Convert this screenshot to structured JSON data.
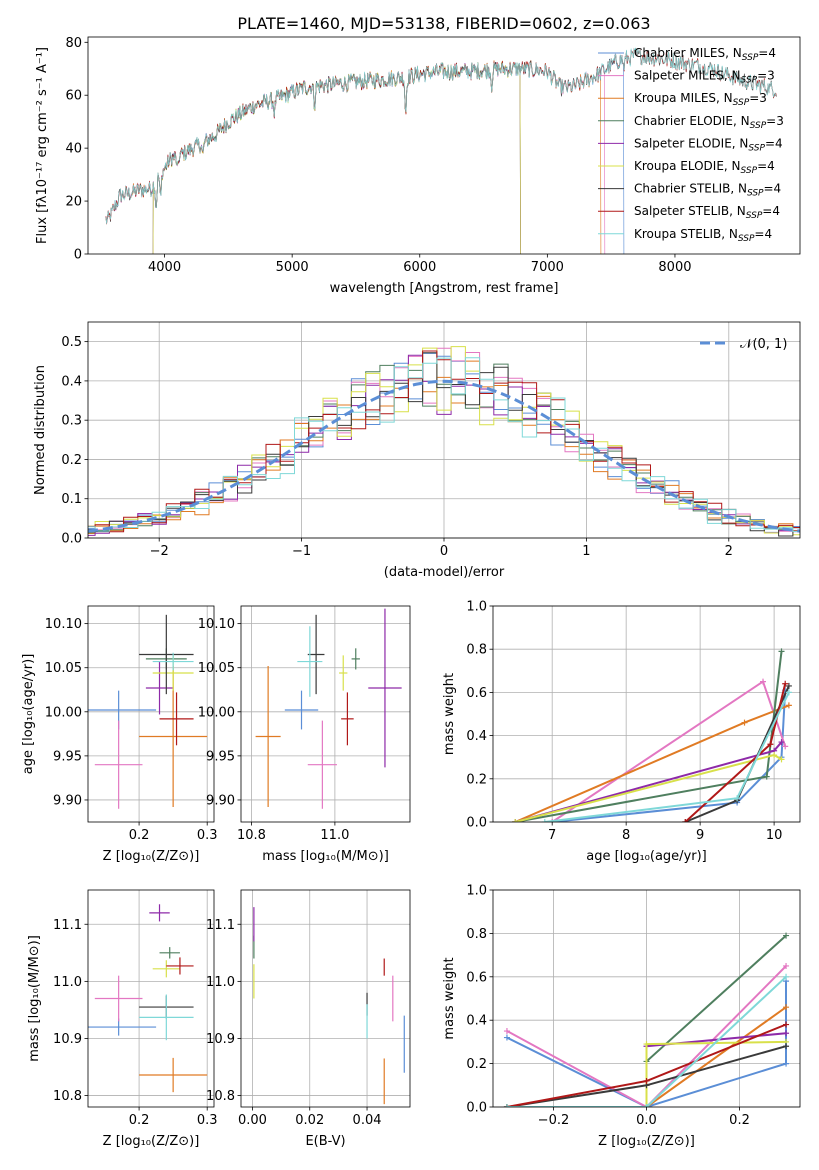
{
  "figure_title": "PLATE=1460, MJD=53138, FIBERID=0602, z=0.063",
  "colors": {
    "Chabrier MILES": "#5b8ed6",
    "Salpeter MILES": "#e377c2",
    "Kroupa MILES": "#e07b24",
    "Chabrier ELODIE": "#4f7f5f",
    "Salpeter ELODIE": "#8e2aa8",
    "Kroupa ELODIE": "#d8e04a",
    "Chabrier STELIB": "#3a3a3a",
    "Salpeter STELIB": "#b01818",
    "Kroupa STELIB": "#7fd8d8"
  },
  "chart_data": [
    {
      "id": "spectrum",
      "type": "line",
      "title": "PLATE=1460, MJD=53138, FIBERID=0602, z=0.063",
      "xlabel": "wavelength [Angstrom, rest frame]",
      "ylabel": "Flux [fλ10⁻¹⁷ erg cm⁻² s⁻¹ A⁻¹]",
      "xlim": [
        3400,
        8980
      ],
      "ylim": [
        0,
        82
      ],
      "xticks": [
        4000,
        5000,
        6000,
        7000,
        8000
      ],
      "yticks": [
        0,
        20,
        40,
        60,
        80
      ],
      "grid": false,
      "legend_placement": "top-right",
      "legend": [
        {
          "name": "Chabrier MILES",
          "label": "Chabrier MILES, N",
          "sub": "SSP",
          "n": "=4"
        },
        {
          "name": "Salpeter MILES",
          "label": "Salpeter MILES, N",
          "sub": "SSP",
          "n": "=3"
        },
        {
          "name": "Kroupa MILES",
          "label": "Kroupa MILES, N",
          "sub": "SSP",
          "n": "=3"
        },
        {
          "name": "Chabrier ELODIE",
          "label": "Chabrier ELODIE, N",
          "sub": "SSP",
          "n": "=3"
        },
        {
          "name": "Salpeter ELODIE",
          "label": "Salpeter ELODIE, N",
          "sub": "SSP",
          "n": "=4"
        },
        {
          "name": "Kroupa ELODIE",
          "label": "Kroupa ELODIE, N",
          "sub": "SSP",
          "n": "=4"
        },
        {
          "name": "Chabrier STELIB",
          "label": "Chabrier STELIB, N",
          "sub": "SSP",
          "n": "=4"
        },
        {
          "name": "Salpeter STELIB",
          "label": "Salpeter STELIB, N",
          "sub": "SSP",
          "n": "=4"
        },
        {
          "name": "Kroupa STELIB",
          "label": "Kroupa STELIB, N",
          "sub": "SSP",
          "n": "=4"
        }
      ],
      "continuum": {
        "x": [
          3560,
          3650,
          3800,
          3900,
          3950,
          4050,
          4150,
          4300,
          4400,
          4500,
          4700,
          4900,
          5100,
          5300,
          5500,
          5700,
          5900,
          6000,
          6200,
          6400,
          6600,
          6800,
          7000,
          7100,
          7200,
          7400,
          7550,
          7700,
          8000,
          8300,
          8500,
          8800
        ],
        "y": [
          13,
          22,
          24,
          25,
          29,
          36,
          38,
          42,
          45,
          50,
          56,
          59,
          63,
          64,
          65,
          66,
          67,
          68,
          69,
          69,
          70,
          70,
          69,
          63,
          63,
          68,
          73,
          75,
          73,
          70,
          66,
          62
        ]
      },
      "series_ranges": [
        {
          "name": "Chabrier MILES",
          "xmin": 3540,
          "xmax": 7600
        },
        {
          "name": "Salpeter MILES",
          "xmin": 3540,
          "xmax": 7450
        },
        {
          "name": "Kroupa MILES",
          "xmin": 3540,
          "xmax": 7420
        },
        {
          "name": "Chabrier ELODIE",
          "xmin": 3910,
          "xmax": 6790
        },
        {
          "name": "Salpeter ELODIE",
          "xmin": 3910,
          "xmax": 6790
        },
        {
          "name": "Kroupa ELODIE",
          "xmin": 3910,
          "xmax": 6790
        },
        {
          "name": "Chabrier STELIB",
          "xmin": 3540,
          "xmax": 8800
        },
        {
          "name": "Salpeter STELIB",
          "xmin": 3540,
          "xmax": 8800
        },
        {
          "name": "Kroupa STELIB",
          "xmin": 3540,
          "xmax": 8800
        }
      ]
    },
    {
      "id": "residuals",
      "type": "bar",
      "xlabel": "(data-model)/error",
      "ylabel": "Normed distribution",
      "xlim": [
        -2.5,
        2.5
      ],
      "ylim": [
        0,
        0.55
      ],
      "xticks": [
        -2,
        -1,
        0,
        1,
        2
      ],
      "yticks": [
        0.0,
        0.1,
        0.2,
        0.3,
        0.4,
        0.5
      ],
      "grid": true,
      "legend_placement": "top-right",
      "legend": [
        {
          "name": "N(0,1)",
          "label": "𝒩(0, 1)"
        }
      ],
      "bin_width": 0.1,
      "notes": "step histograms, one per model fit, around a standard normal curve"
    },
    {
      "id": "age_vs_Z",
      "type": "scatter",
      "xlabel": "Z [log₁₀(Z/Z⊙)]",
      "ylabel": "age  [log₁₀(age/yr)]",
      "xlim": [
        0.125,
        0.31
      ],
      "ylim": [
        9.875,
        10.12
      ],
      "xticks": [
        0.2,
        0.3
      ],
      "yticks": [
        9.9,
        9.95,
        10.0,
        10.05,
        10.1
      ],
      "grid": true,
      "points": [
        {
          "name": "Chabrier MILES",
          "x": 0.17,
          "xerr": 0.055,
          "y": 10.002,
          "yerr": 0.022
        },
        {
          "name": "Salpeter MILES",
          "x": 0.17,
          "xerr": 0.035,
          "y": 9.94,
          "yerr": 0.05
        },
        {
          "name": "Kroupa MILES",
          "x": 0.25,
          "xerr": 0.05,
          "y": 9.972,
          "yerr": 0.08
        },
        {
          "name": "Chabrier ELODIE",
          "x": 0.24,
          "xerr": 0.03,
          "y": 10.06,
          "yerr": 0.012
        },
        {
          "name": "Salpeter ELODIE",
          "x": 0.23,
          "xerr": 0.02,
          "y": 10.027,
          "yerr": 0.03
        },
        {
          "name": "Kroupa ELODIE",
          "x": 0.25,
          "xerr": 0.03,
          "y": 10.044,
          "yerr": 0.02
        },
        {
          "name": "Chabrier STELIB",
          "x": 0.24,
          "xerr": 0.04,
          "y": 10.065,
          "yerr": 0.045
        },
        {
          "name": "Salpeter STELIB",
          "x": 0.255,
          "xerr": 0.025,
          "y": 9.992,
          "yerr": 0.03
        },
        {
          "name": "Kroupa STELIB",
          "x": 0.25,
          "xerr": 0.03,
          "y": 10.057,
          "yerr": 0.01
        }
      ]
    },
    {
      "id": "age_vs_mass",
      "type": "scatter",
      "xlabel": "mass [log₁₀(M/M⊙)]",
      "ylabel": "",
      "xlim": [
        10.775,
        11.18
      ],
      "ylim": [
        9.875,
        10.12
      ],
      "xticks": [
        10.8,
        11.0
      ],
      "yticks": [
        9.9,
        9.95,
        10.0,
        10.05,
        10.1
      ],
      "grid": true,
      "points": [
        {
          "name": "Chabrier MILES",
          "x": 10.92,
          "xerr": 0.04,
          "y": 10.002,
          "yerr": 0.022
        },
        {
          "name": "Salpeter MILES",
          "x": 10.97,
          "xerr": 0.035,
          "y": 9.94,
          "yerr": 0.05
        },
        {
          "name": "Kroupa MILES",
          "x": 10.84,
          "xerr": 0.03,
          "y": 9.972,
          "yerr": 0.08
        },
        {
          "name": "Chabrier ELODIE",
          "x": 11.05,
          "xerr": 0.01,
          "y": 10.06,
          "yerr": 0.012
        },
        {
          "name": "Salpeter ELODIE",
          "x": 11.12,
          "xerr": 0.04,
          "y": 10.027,
          "yerr": 0.09
        },
        {
          "name": "Kroupa ELODIE",
          "x": 11.02,
          "xerr": 0.01,
          "y": 10.044,
          "yerr": 0.02
        },
        {
          "name": "Chabrier STELIB",
          "x": 10.955,
          "xerr": 0.02,
          "y": 10.065,
          "yerr": 0.045
        },
        {
          "name": "Salpeter STELIB",
          "x": 11.03,
          "xerr": 0.015,
          "y": 9.992,
          "yerr": 0.03
        },
        {
          "name": "Kroupa STELIB",
          "x": 10.94,
          "xerr": 0.03,
          "y": 10.057,
          "yerr": 0.04
        }
      ]
    },
    {
      "id": "weights_vs_age",
      "type": "line",
      "xlabel": "age  [log₁₀(age/yr)]",
      "ylabel": "mass weight",
      "xlim": [
        6.2,
        10.35
      ],
      "ylim": [
        0,
        1.0
      ],
      "xticks": [
        7,
        8,
        9,
        10
      ],
      "yticks": [
        0.0,
        0.2,
        0.4,
        0.6,
        0.8,
        1.0
      ],
      "grid": true,
      "series": [
        {
          "name": "Chabrier MILES",
          "x": [
            7.0,
            9.5,
            10.1,
            10.15
          ],
          "y": [
            0.0,
            0.09,
            0.3,
            0.61
          ]
        },
        {
          "name": "Salpeter MILES",
          "x": [
            7.0,
            9.85,
            10.15
          ],
          "y": [
            0.0,
            0.65,
            0.35
          ]
        },
        {
          "name": "Kroupa MILES",
          "x": [
            6.5,
            9.6,
            10.2
          ],
          "y": [
            0.0,
            0.46,
            0.54
          ]
        },
        {
          "name": "Chabrier ELODIE",
          "x": [
            6.5,
            9.9,
            10.1
          ],
          "y": [
            0.0,
            0.21,
            0.79
          ]
        },
        {
          "name": "Salpeter ELODIE",
          "x": [
            6.5,
            10.0,
            10.1
          ],
          "y": [
            0.0,
            0.33,
            0.37
          ]
        },
        {
          "name": "Kroupa ELODIE",
          "x": [
            6.5,
            10.0,
            10.1
          ],
          "y": [
            0.0,
            0.31,
            0.29
          ]
        },
        {
          "name": "Chabrier STELIB",
          "x": [
            8.8,
            9.5,
            10.2
          ],
          "y": [
            0.0,
            0.1,
            0.63
          ]
        },
        {
          "name": "Salpeter STELIB",
          "x": [
            8.8,
            9.95,
            10.15
          ],
          "y": [
            0.0,
            0.36,
            0.64
          ]
        },
        {
          "name": "Kroupa STELIB",
          "x": [
            6.9,
            9.5,
            10.2
          ],
          "y": [
            0.0,
            0.11,
            0.6
          ]
        }
      ]
    },
    {
      "id": "mass_vs_Z",
      "type": "scatter",
      "xlabel": "Z [log₁₀(Z/Z⊙)]",
      "ylabel": "mass [log₁₀(M/M⊙)]",
      "xlim": [
        0.125,
        0.31
      ],
      "ylim": [
        10.78,
        11.16
      ],
      "xticks": [
        0.2,
        0.3
      ],
      "yticks": [
        10.8,
        10.9,
        11.0,
        11.1
      ],
      "grid": true,
      "points": [
        {
          "name": "Chabrier MILES",
          "x": 0.17,
          "xerr": 0.055,
          "y": 10.92,
          "yerr": 0.015
        },
        {
          "name": "Salpeter MILES",
          "x": 0.17,
          "xerr": 0.035,
          "y": 10.97,
          "yerr": 0.04
        },
        {
          "name": "Kroupa MILES",
          "x": 0.25,
          "xerr": 0.05,
          "y": 10.836,
          "yerr": 0.03
        },
        {
          "name": "Chabrier ELODIE",
          "x": 0.245,
          "xerr": 0.015,
          "y": 11.05,
          "yerr": 0.01
        },
        {
          "name": "Salpeter ELODIE",
          "x": 0.23,
          "xerr": 0.015,
          "y": 11.12,
          "yerr": 0.015
        },
        {
          "name": "Kroupa ELODIE",
          "x": 0.24,
          "xerr": 0.02,
          "y": 11.022,
          "yerr": 0.015
        },
        {
          "name": "Chabrier STELIB",
          "x": 0.24,
          "xerr": 0.04,
          "y": 10.955,
          "yerr": 0.02
        },
        {
          "name": "Salpeter STELIB",
          "x": 0.26,
          "xerr": 0.02,
          "y": 11.027,
          "yerr": 0.015
        },
        {
          "name": "Kroupa STELIB",
          "x": 0.24,
          "xerr": 0.04,
          "y": 10.937,
          "yerr": 0.04
        }
      ]
    },
    {
      "id": "mass_vs_ebv",
      "type": "scatter",
      "xlabel": "E(B-V)",
      "ylabel": "",
      "xlim": [
        -0.004,
        0.055
      ],
      "ylim": [
        10.78,
        11.16
      ],
      "xticks": [
        0.0,
        0.02,
        0.04
      ],
      "yticks": [
        10.8,
        10.9,
        11.0,
        11.1
      ],
      "grid": true,
      "points": [
        {
          "name": "Chabrier MILES",
          "x": 0.053,
          "xerr": 0.0,
          "y": 10.89,
          "yerr": 0.05
        },
        {
          "name": "Salpeter MILES",
          "x": 0.049,
          "xerr": 0.0,
          "y": 10.97,
          "yerr": 0.04
        },
        {
          "name": "Kroupa MILES",
          "x": 0.046,
          "xerr": 0.0,
          "y": 10.825,
          "yerr": 0.04
        },
        {
          "name": "Chabrier ELODIE",
          "x": 0.0005,
          "xerr": 0.0,
          "y": 11.06,
          "yerr": 0.02
        },
        {
          "name": "Salpeter ELODIE",
          "x": 0.0005,
          "xerr": 0.0,
          "y": 11.1,
          "yerr": 0.03
        },
        {
          "name": "Kroupa ELODIE",
          "x": 0.0005,
          "xerr": 0.0,
          "y": 11.0,
          "yerr": 0.03
        },
        {
          "name": "Chabrier STELIB",
          "x": 0.04,
          "xerr": 0.0,
          "y": 10.96,
          "yerr": 0.02
        },
        {
          "name": "Salpeter STELIB",
          "x": 0.046,
          "xerr": 0.0,
          "y": 11.025,
          "yerr": 0.015
        },
        {
          "name": "Kroupa STELIB",
          "x": 0.04,
          "xerr": 0.0,
          "y": 10.93,
          "yerr": 0.03
        }
      ]
    },
    {
      "id": "weights_vs_Z",
      "type": "line",
      "xlabel": "Z [log₁₀(Z/Z⊙)]",
      "ylabel": "mass weight",
      "xlim": [
        -0.33,
        0.33
      ],
      "ylim": [
        0,
        1.0
      ],
      "xticks": [
        -0.2,
        0.0,
        0.2
      ],
      "yticks": [
        0.0,
        0.2,
        0.4,
        0.6,
        0.8,
        1.0
      ],
      "grid": true,
      "series": [
        {
          "name": "Chabrier MILES",
          "x": [
            -0.3,
            0.0,
            0.3,
            0.3
          ],
          "y": [
            0.32,
            0.0,
            0.2,
            0.58
          ]
        },
        {
          "name": "Salpeter MILES",
          "x": [
            -0.3,
            0.0,
            0.3
          ],
          "y": [
            0.35,
            0.0,
            0.65
          ]
        },
        {
          "name": "Kroupa MILES",
          "x": [
            -0.3,
            0.0,
            0.3
          ],
          "y": [
            0.0,
            0.0,
            0.46
          ]
        },
        {
          "name": "Chabrier ELODIE",
          "x": [
            -0.3,
            0.0,
            0.0,
            0.3
          ],
          "y": [
            0.0,
            0.0,
            0.21,
            0.79
          ]
        },
        {
          "name": "Salpeter ELODIE",
          "x": [
            -0.3,
            0.0,
            0.0,
            0.3
          ],
          "y": [
            0.0,
            0.0,
            0.28,
            0.34
          ]
        },
        {
          "name": "Kroupa ELODIE",
          "x": [
            -0.3,
            0.0,
            0.0,
            0.3
          ],
          "y": [
            0.0,
            0.0,
            0.29,
            0.3
          ]
        },
        {
          "name": "Chabrier STELIB",
          "x": [
            -0.3,
            0.0,
            0.3
          ],
          "y": [
            0.0,
            0.1,
            0.28
          ]
        },
        {
          "name": "Salpeter STELIB",
          "x": [
            -0.3,
            0.0,
            0.3
          ],
          "y": [
            0.0,
            0.12,
            0.38
          ]
        },
        {
          "name": "Kroupa STELIB",
          "x": [
            -0.3,
            0.0,
            0.3
          ],
          "y": [
            0.0,
            0.0,
            0.6
          ]
        }
      ]
    }
  ]
}
